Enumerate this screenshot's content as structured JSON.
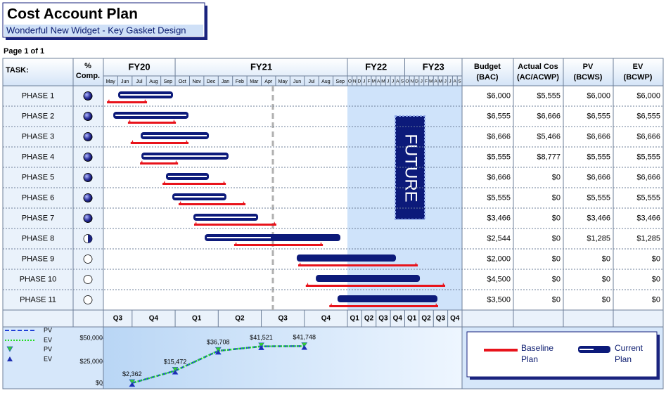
{
  "header": {
    "title": "Cost Account Plan",
    "subtitle": "Wonderful New Widget - Key Gasket Design"
  },
  "page": "Page 1 of 1",
  "columns": {
    "task": "TASK:",
    "pct": [
      "%",
      "Comp."
    ],
    "budget": [
      "Budget",
      "(BAC)"
    ],
    "actual": [
      "Actual Cos",
      "(AC/ACWP)"
    ],
    "pv": [
      "PV",
      "(BCWS)"
    ],
    "ev": [
      "EV",
      "(BCWP)"
    ]
  },
  "fiscal_years": [
    "FY20",
    "FY21",
    "FY22",
    "FY23"
  ],
  "months": [
    "May",
    "Jun",
    "Jul",
    "Aug",
    "Sep",
    "Oct",
    "Nov",
    "Dec",
    "Jan",
    "Feb",
    "Mar",
    "Apr",
    "May",
    "Jun",
    "Jul",
    "Aug",
    "Sep",
    "O",
    "N",
    "D",
    "J",
    "F",
    "M",
    "A",
    "M",
    "J",
    "J",
    "A",
    "S",
    "O",
    "N",
    "D",
    "J",
    "F",
    "M",
    "A",
    "M",
    "J",
    "J",
    "A",
    "S"
  ],
  "quarters": [
    "Q3",
    "Q4",
    "Q1",
    "Q2",
    "Q3",
    "Q4",
    "Q1",
    "Q2",
    "Q3",
    "Q4",
    "Q1",
    "Q2",
    "Q3",
    "Q4"
  ],
  "future_label": "FUTURE",
  "tasks": [
    {
      "name": "PHASE 1",
      "pct_complete": 100,
      "current": [
        1.03,
        4.85
      ],
      "baseline": [
        0.25,
        3.04
      ],
      "budget": "$6,000",
      "actual": "$5,555",
      "pv": "$6,000",
      "ev": "$6,000"
    },
    {
      "name": "PHASE 2",
      "pct_complete": 100,
      "current": [
        0.69,
        5.93
      ],
      "baseline": [
        1.71,
        5.05
      ],
      "budget": "$6,555",
      "actual": "$6,666",
      "pv": "$6,555",
      "ev": "$6,555"
    },
    {
      "name": "PHASE 3",
      "pct_complete": 100,
      "current": [
        2.6,
        7.35
      ],
      "baseline": [
        1.9,
        5.93
      ],
      "budget": "$6,666",
      "actual": "$5,466",
      "pv": "$6,666",
      "ev": "$6,666"
    },
    {
      "name": "PHASE 4",
      "pct_complete": 100,
      "current": [
        2.65,
        8.72
      ],
      "baseline": [
        2.55,
        5.2
      ],
      "budget": "$5,555",
      "actual": "$8,777",
      "pv": "$5,555",
      "ev": "$5,555"
    },
    {
      "name": "PHASE 5",
      "pct_complete": 100,
      "current": [
        4.36,
        7.35
      ],
      "baseline": [
        4.12,
        8.53
      ],
      "budget": "$6,666",
      "actual": "$0",
      "pv": "$6,666",
      "ev": "$6,666"
    },
    {
      "name": "PHASE 6",
      "pct_complete": 100,
      "current": [
        4.8,
        8.57
      ],
      "baseline": [
        5.24,
        9.9
      ],
      "budget": "$5,555",
      "actual": "$0",
      "pv": "$5,555",
      "ev": "$5,555"
    },
    {
      "name": "PHASE 7",
      "pct_complete": 100,
      "current": [
        6.27,
        10.78
      ],
      "baseline": [
        6.32,
        12.05
      ],
      "budget": "$3,466",
      "actual": "$0",
      "pv": "$3,466",
      "ev": "$3,466"
    },
    {
      "name": "PHASE 8",
      "pct_complete": 50,
      "current": [
        7.06,
        16.51
      ],
      "baseline": [
        9.11,
        15.29
      ],
      "budget": "$2,544",
      "actual": "$0",
      "pv": "$1,285",
      "ev": "$1,285"
    },
    {
      "name": "PHASE 9",
      "pct_complete": 0,
      "current": [
        13.47,
        27.16
      ],
      "baseline": [
        13.57,
        31.73
      ],
      "budget": "$2,000",
      "actual": "$0",
      "pv": "$0",
      "ev": "$0"
    },
    {
      "name": "PHASE 10",
      "pct_complete": 0,
      "current": [
        14.8,
        32.17
      ],
      "baseline": [
        14.1,
        37.47
      ],
      "budget": "$4,500",
      "actual": "$0",
      "pv": "$0",
      "ev": "$0"
    },
    {
      "name": "PHASE 11",
      "pct_complete": 0,
      "current": [
        16.31,
        35.85
      ],
      "baseline": [
        15.74,
        35.99
      ],
      "budget": "$3,500",
      "actual": "$0",
      "pv": "$0",
      "ev": "$0"
    }
  ],
  "cost_curve": {
    "ylim": [
      0,
      60000
    ],
    "yticks": [
      {
        "value": 0,
        "label": "$0"
      },
      {
        "value": 25000,
        "label": "$25,000"
      },
      {
        "value": 50000,
        "label": "$50,000"
      }
    ],
    "quarter_index": [
      0,
      1,
      2,
      3,
      4
    ],
    "series": [
      {
        "name": "PV",
        "color": "#1f3fd8",
        "marker_color": "#33cc33",
        "values": [
          2362,
          15472,
          36708,
          41521,
          41748
        ]
      },
      {
        "name": "EV",
        "color": "#22dd22",
        "marker_color": "#1f2fb0",
        "values": [
          2362,
          15472,
          36708,
          41521,
          41748
        ]
      }
    ],
    "value_labels": [
      "$2,362",
      "$15,472",
      "$36,708",
      "$41,521",
      "$41,748"
    ]
  },
  "legend": {
    "baseline": [
      "Baseline",
      "Plan"
    ],
    "current": [
      "Current",
      "Plan"
    ]
  }
}
